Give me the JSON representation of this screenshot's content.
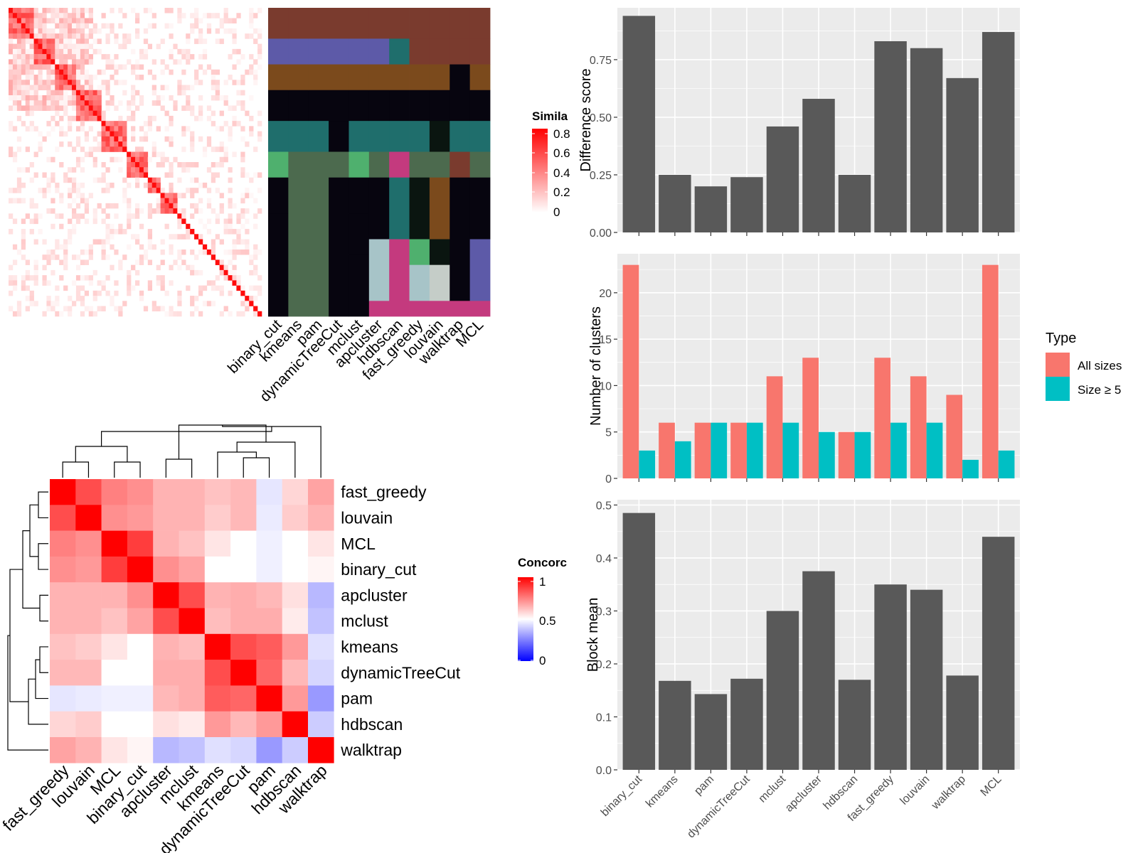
{
  "colors": {
    "panel_bg": "#EBEBEB",
    "grid": "#FFFFFF",
    "bar": "#595959",
    "all_sizes": "#F8766D",
    "size_ge5": "#00BFC4",
    "sim_high": "#FF0000",
    "sim_low": "#FFFFFF",
    "conc_high": "#FF0000",
    "conc_mid": "#FFFFFF",
    "conc_low": "#0000FF"
  },
  "similarity_heatmap": {
    "legend_title": "Simila",
    "legend_ticks": [
      "0.8",
      "0.6",
      "0.4",
      "0.2",
      "0"
    ],
    "n": 60
  },
  "cluster_assignment": {
    "methods": [
      "binary_cut",
      "kmeans",
      "pam",
      "dynamicTreeCut",
      "mclust",
      "apcluster",
      "hdbscan",
      "fast_greedy",
      "louvain",
      "walktrap",
      "MCL"
    ]
  },
  "concordance_heatmap": {
    "legend_title": "Concorc",
    "legend_ticks": [
      "1",
      "0.5",
      "0"
    ],
    "labels": [
      "fast_greedy",
      "louvain",
      "MCL",
      "binary_cut",
      "apcluster",
      "mclust",
      "kmeans",
      "dynamicTreeCut",
      "pam",
      "hdbscan",
      "walktrap"
    ],
    "matrix": [
      [
        1.0,
        0.85,
        0.75,
        0.72,
        0.65,
        0.65,
        0.62,
        0.64,
        0.45,
        0.58,
        0.68
      ],
      [
        0.85,
        1.0,
        0.72,
        0.7,
        0.65,
        0.65,
        0.6,
        0.64,
        0.46,
        0.6,
        0.65
      ],
      [
        0.75,
        0.72,
        1.0,
        0.88,
        0.65,
        0.62,
        0.55,
        0.5,
        0.47,
        0.5,
        0.55
      ],
      [
        0.72,
        0.7,
        0.88,
        1.0,
        0.72,
        0.68,
        0.5,
        0.5,
        0.47,
        0.5,
        0.52
      ],
      [
        0.65,
        0.65,
        0.65,
        0.72,
        1.0,
        0.85,
        0.65,
        0.66,
        0.64,
        0.56,
        0.36
      ],
      [
        0.65,
        0.65,
        0.62,
        0.68,
        0.85,
        1.0,
        0.63,
        0.66,
        0.66,
        0.54,
        0.38
      ],
      [
        0.62,
        0.6,
        0.55,
        0.5,
        0.65,
        0.63,
        1.0,
        0.85,
        0.82,
        0.7,
        0.44
      ],
      [
        0.64,
        0.64,
        0.5,
        0.5,
        0.66,
        0.66,
        0.85,
        1.0,
        0.8,
        0.64,
        0.42
      ],
      [
        0.45,
        0.46,
        0.47,
        0.47,
        0.64,
        0.66,
        0.82,
        0.8,
        1.0,
        0.7,
        0.3
      ],
      [
        0.58,
        0.6,
        0.5,
        0.5,
        0.56,
        0.54,
        0.7,
        0.64,
        0.7,
        1.0,
        0.4
      ],
      [
        0.68,
        0.65,
        0.55,
        0.52,
        0.36,
        0.38,
        0.44,
        0.42,
        0.3,
        0.4,
        1.0
      ]
    ]
  },
  "chart_data": [
    {
      "type": "bar",
      "categories": [
        "binary_cut",
        "kmeans",
        "pam",
        "dynamicTreeCut",
        "mclust",
        "apcluster",
        "hdbscan",
        "fast_greedy",
        "louvain",
        "walktrap",
        "MCL"
      ],
      "values": [
        0.94,
        0.25,
        0.2,
        0.24,
        0.46,
        0.58,
        0.25,
        0.83,
        0.8,
        0.67,
        0.87
      ],
      "ylabel": "Difference score",
      "ylim": [
        0,
        0.975
      ],
      "yticks": [
        "0.00",
        "0.25",
        "0.50",
        "0.75"
      ],
      "grid": true
    },
    {
      "type": "bar",
      "categories": [
        "binary_cut",
        "kmeans",
        "pam",
        "dynamicTreeCut",
        "mclust",
        "apcluster",
        "hdbscan",
        "fast_greedy",
        "louvain",
        "walktrap",
        "MCL"
      ],
      "series": [
        {
          "name": "All sizes",
          "values": [
            23,
            6,
            6,
            6,
            11,
            13,
            5,
            13,
            11,
            9,
            23
          ]
        },
        {
          "name": "Size ≥ 5",
          "values": [
            3,
            4,
            6,
            6,
            6,
            5,
            5,
            6,
            6,
            2,
            3
          ]
        }
      ],
      "ylabel": "Number of clusters",
      "ylim": [
        0,
        24.2
      ],
      "yticks": [
        "0",
        "5",
        "10",
        "15",
        "20"
      ],
      "legend": {
        "title": "Type",
        "position": "right"
      },
      "grid": true
    },
    {
      "type": "bar",
      "categories": [
        "binary_cut",
        "kmeans",
        "pam",
        "dynamicTreeCut",
        "mclust",
        "apcluster",
        "hdbscan",
        "fast_greedy",
        "louvain",
        "walktrap",
        "MCL"
      ],
      "values": [
        0.485,
        0.168,
        0.143,
        0.172,
        0.3,
        0.375,
        0.17,
        0.35,
        0.34,
        0.178,
        0.44
      ],
      "ylabel": "Block mean",
      "ylim": [
        0,
        0.51
      ],
      "yticks": [
        "0.0",
        "0.1",
        "0.2",
        "0.3",
        "0.4",
        "0.5"
      ],
      "grid": true
    }
  ]
}
